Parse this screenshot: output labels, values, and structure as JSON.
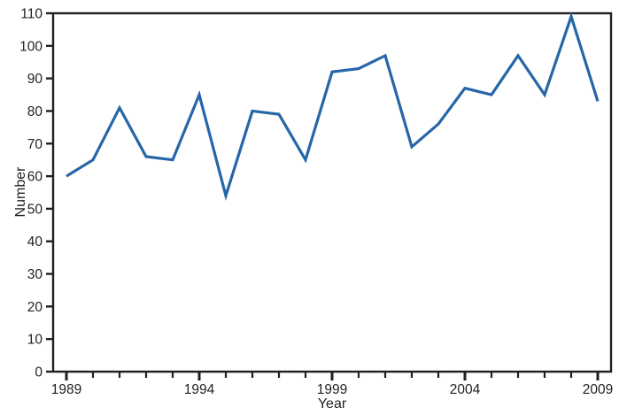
{
  "chart_data": {
    "type": "line",
    "title": "",
    "xlabel": "Year",
    "ylabel": "Number",
    "x": [
      1989,
      1990,
      1991,
      1992,
      1993,
      1994,
      1995,
      1996,
      1997,
      1998,
      1999,
      2000,
      2001,
      2002,
      2003,
      2004,
      2005,
      2006,
      2007,
      2008,
      2009
    ],
    "series": [
      {
        "name": "Number",
        "values": [
          60,
          65,
          81,
          66,
          65,
          85,
          54,
          80,
          79,
          65,
          92,
          93,
          97,
          69,
          76,
          87,
          85,
          97,
          85,
          109,
          83
        ]
      }
    ],
    "ylim": [
      0,
      110
    ],
    "yticks": [
      0,
      10,
      20,
      30,
      40,
      50,
      60,
      70,
      80,
      90,
      100,
      110
    ],
    "xticks_minor_every_year": true,
    "xticks_labeled": [
      1989,
      1994,
      1999,
      2004,
      2009
    ],
    "grid": false,
    "legend_position": "none",
    "colors": {
      "line": "#2666A8",
      "axis": "#231F20",
      "background": "#FFFFFF"
    }
  }
}
